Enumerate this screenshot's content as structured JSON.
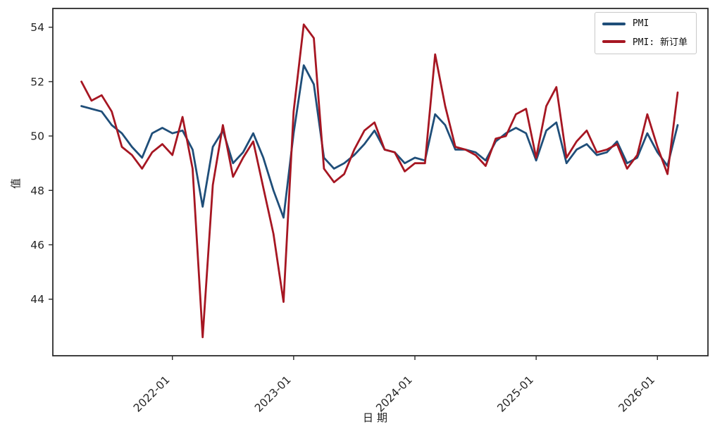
{
  "figure": {
    "background": "#ffffff",
    "axis_color": "#2b2b2b",
    "tick_label_color": "#262626"
  },
  "chart_data": {
    "type": "line",
    "title": "",
    "xlabel": "日期",
    "ylabel": "值",
    "grid": false,
    "legend_position": "upper right",
    "yticks": [
      44,
      46,
      48,
      50,
      52,
      54
    ],
    "xticks": [
      "2022-01",
      "2023-01",
      "2024-01",
      "2025-01",
      "2026-01"
    ],
    "ylim": [
      41.92,
      54.69
    ],
    "x": [
      "2021-04",
      "2021-05",
      "2021-06",
      "2021-07",
      "2021-08",
      "2021-09",
      "2021-10",
      "2021-11",
      "2021-12",
      "2022-01",
      "2022-02",
      "2022-03",
      "2022-04",
      "2022-05",
      "2022-06",
      "2022-07",
      "2022-08",
      "2022-09",
      "2022-10",
      "2022-11",
      "2022-12",
      "2023-01",
      "2023-02",
      "2023-03",
      "2023-04",
      "2023-05",
      "2023-06",
      "2023-07",
      "2023-08",
      "2023-09",
      "2023-10",
      "2023-11",
      "2023-12",
      "2024-01",
      "2024-02",
      "2024-03",
      "2024-04",
      "2024-05",
      "2024-06",
      "2024-07",
      "2024-08",
      "2024-09",
      "2024-10",
      "2024-11",
      "2024-12",
      "2025-01",
      "2025-02",
      "2025-03",
      "2025-04",
      "2025-05",
      "2025-06",
      "2025-07",
      "2025-08",
      "2025-09",
      "2025-10",
      "2025-11",
      "2025-12",
      "2026-01",
      "2026-02",
      "2026-03"
    ],
    "series": [
      {
        "name": "PMI",
        "color": "#1f4e79",
        "values": [
          51.1,
          51.0,
          50.9,
          50.4,
          50.1,
          49.6,
          49.2,
          50.1,
          50.3,
          50.1,
          50.2,
          49.5,
          47.4,
          49.6,
          50.2,
          49.0,
          49.4,
          50.1,
          49.2,
          48.0,
          47.0,
          50.1,
          52.6,
          51.9,
          49.2,
          48.8,
          49.0,
          49.3,
          49.7,
          50.2,
          49.5,
          49.4,
          49.0,
          49.2,
          49.1,
          50.8,
          50.4,
          49.5,
          49.5,
          49.4,
          49.1,
          49.8,
          50.1,
          50.3,
          50.1,
          49.1,
          50.2,
          50.5,
          49.0,
          49.5,
          49.7,
          49.3,
          49.4,
          49.8,
          49.0,
          49.2,
          50.1,
          49.4,
          48.9,
          50.4
        ]
      },
      {
        "name": "PMI: 新订单",
        "color": "#a61622",
        "values": [
          52.0,
          51.3,
          51.5,
          50.9,
          49.6,
          49.3,
          48.8,
          49.4,
          49.7,
          49.3,
          50.7,
          48.8,
          42.6,
          48.2,
          50.4,
          48.5,
          49.2,
          49.8,
          48.1,
          46.4,
          43.9,
          50.9,
          54.1,
          53.6,
          48.8,
          48.3,
          48.6,
          49.5,
          50.2,
          50.5,
          49.5,
          49.4,
          48.7,
          49.0,
          49.0,
          53.0,
          51.1,
          49.6,
          49.5,
          49.3,
          48.9,
          49.9,
          50.0,
          50.8,
          51.0,
          49.2,
          51.1,
          51.8,
          49.2,
          49.8,
          50.2,
          49.4,
          49.5,
          49.7,
          48.8,
          49.3,
          50.8,
          49.6,
          48.6,
          51.6
        ]
      }
    ]
  }
}
